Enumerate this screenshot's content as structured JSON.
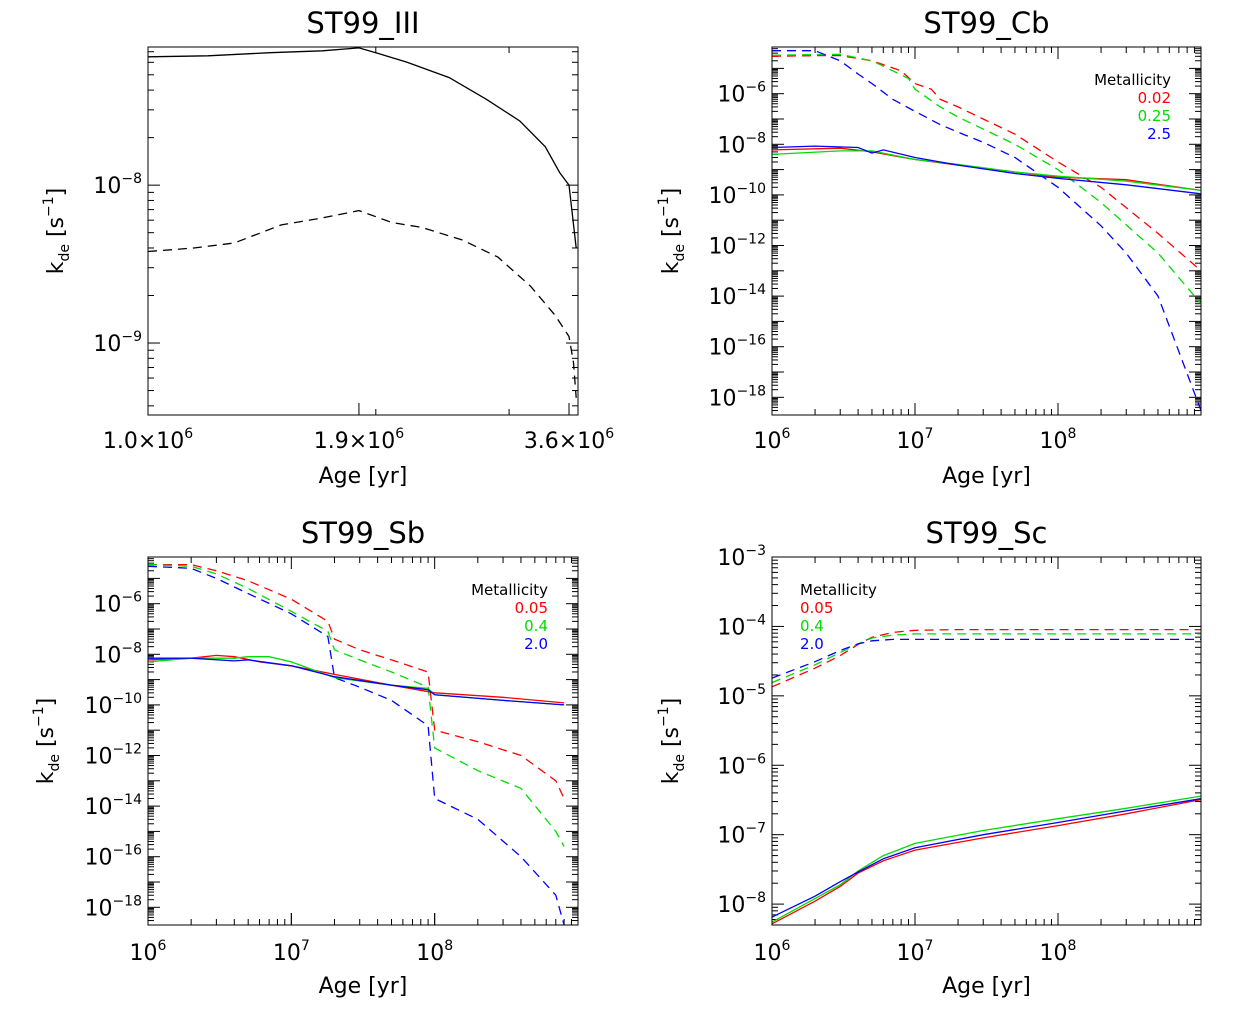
{
  "chart_data": [
    {
      "type": "line",
      "title": "ST99_III",
      "xlabel": "Age [yr]",
      "ylabel": "k_de [s^-1]",
      "xscale": "log",
      "yscale": "log",
      "xlim": [
        1000000,
        3700000
      ],
      "ylim": [
        3.5e-10,
        7.5e-08
      ],
      "xticks": [
        {
          "v": 1000000,
          "m": "1.0×10",
          "e": "6"
        },
        {
          "v": 1900000,
          "m": "1.9×10",
          "e": "6"
        },
        {
          "v": 3600000,
          "m": "3.6×10",
          "e": "6"
        }
      ],
      "yticks": [
        {
          "v": 1e-09,
          "m": "10",
          "e": "−9"
        },
        {
          "v": 1e-08,
          "m": "10",
          "e": "−8"
        }
      ],
      "legend_title": "",
      "series": [
        {
          "color": "#000000",
          "dash": false,
          "x": [
            1000000,
            1200000,
            1450000,
            1700000,
            1900000,
            2000000,
            2200000,
            2500000,
            2800000,
            3100000,
            3350000,
            3500000,
            3600000,
            3680000
          ],
          "y": [
            6.5e-08,
            6.6e-08,
            6.9e-08,
            7.1e-08,
            7.4e-08,
            6.9e-08,
            6e-08,
            4.8e-08,
            3.5e-08,
            2.55e-08,
            1.75e-08,
            1.2e-08,
            1e-08,
            4e-09
          ]
        },
        {
          "color": "#000000",
          "dash": true,
          "x": [
            1000000,
            1150000,
            1300000,
            1500000,
            1700000,
            1900000,
            2100000,
            2300000,
            2600000,
            2900000,
            3200000,
            3450000,
            3600000,
            3650000,
            3680000
          ],
          "y": [
            3.8e-09,
            4e-09,
            4.3e-09,
            5.6e-09,
            6.2e-09,
            6.9e-09,
            5.8e-09,
            5.4e-09,
            4.5e-09,
            3.5e-09,
            2.3e-09,
            1.5e-09,
            1.1e-09,
            7.5e-10,
            4.5e-10
          ]
        }
      ]
    },
    {
      "type": "line",
      "title": "ST99_Cb",
      "xlabel": "Age [yr]",
      "ylabel": "k_de [s^-1]",
      "xscale": "log",
      "yscale": "log",
      "xlim": [
        1000000,
        1000000000
      ],
      "ylim": [
        2e-19,
        7e-05
      ],
      "xticks": [
        {
          "v": 1000000,
          "m": "10",
          "e": "6"
        },
        {
          "v": 10000000,
          "m": "10",
          "e": "7"
        },
        {
          "v": 100000000,
          "m": "10",
          "e": "8"
        }
      ],
      "yticks": [
        {
          "v": 1e-06,
          "m": "10",
          "e": "−6"
        },
        {
          "v": 1e-08,
          "m": "10",
          "e": "−8"
        },
        {
          "v": 1e-10,
          "m": "10",
          "e": "−10"
        },
        {
          "v": 1e-12,
          "m": "10",
          "e": "−12"
        },
        {
          "v": 1e-14,
          "m": "10",
          "e": "−14"
        },
        {
          "v": 1e-16,
          "m": "10",
          "e": "−16"
        },
        {
          "v": 1e-18,
          "m": "10",
          "e": "−18"
        }
      ],
      "legend_title": "Metallicity",
      "series": [
        {
          "name": "0.02",
          "color": "#ff0000",
          "dash": true,
          "x": [
            1000000,
            2000000,
            3000000,
            5000000,
            8000000,
            10000000,
            13000000,
            15000000,
            20000000,
            30000000,
            50000000,
            100000000,
            200000000,
            500000000,
            1000000000
          ],
          "y": [
            3e-05,
            3.2e-05,
            3.2e-05,
            2e-05,
            8e-06,
            2.5e-06,
            1.5e-06,
            6e-07,
            3e-07,
            1e-07,
            2.5e-08,
            2e-09,
            2e-10,
            3e-12,
            1e-13
          ]
        },
        {
          "name": "0.25",
          "color": "#00dd00",
          "dash": true,
          "x": [
            1000000,
            2000000,
            3000000,
            5000000,
            7000000,
            9000000,
            10000000,
            15000000,
            20000000,
            30000000,
            50000000,
            100000000,
            200000000,
            500000000,
            1000000000
          ],
          "y": [
            3.3e-05,
            3.5e-05,
            3.6e-05,
            2e-05,
            8e-06,
            4e-06,
            1.5e-06,
            3e-07,
            1.2e-07,
            4e-08,
            1e-08,
            1e-09,
            5e-11,
            5e-13,
            5e-15
          ]
        },
        {
          "name": "2.5",
          "color": "#0000ff",
          "dash": true,
          "x": [
            1000000,
            2000000,
            3000000,
            4000000,
            5000000,
            7000000,
            10000000,
            15000000,
            20000000,
            30000000,
            50000000,
            100000000,
            200000000,
            300000000,
            500000000,
            1000000000
          ],
          "y": [
            5e-05,
            5e-05,
            2e-05,
            6e-06,
            2.5e-06,
            6e-07,
            2e-07,
            6e-08,
            3e-08,
            1.2e-08,
            3e-09,
            2e-10,
            6e-12,
            5e-13,
            1e-14,
            3e-19
          ]
        },
        {
          "name": "0.02",
          "color": "#ff0000",
          "dash": false,
          "x": [
            1000000,
            3000000,
            5000000,
            10000000,
            20000000,
            50000000,
            100000000,
            300000000,
            1000000000
          ],
          "y": [
            6e-09,
            7e-09,
            5e-09,
            2.5e-09,
            1.5e-09,
            8e-10,
            5e-10,
            4e-10,
            1.5e-10
          ]
        },
        {
          "name": "0.25",
          "color": "#00dd00",
          "dash": false,
          "x": [
            1000000,
            3000000,
            5000000,
            10000000,
            20000000,
            50000000,
            100000000,
            300000000,
            1000000000
          ],
          "y": [
            4e-09,
            5.5e-09,
            5.5e-09,
            2.5e-09,
            1.6e-09,
            8e-10,
            5.5e-10,
            3.5e-10,
            1.5e-10
          ]
        },
        {
          "name": "2.5",
          "color": "#0000ff",
          "dash": false,
          "x": [
            1000000,
            2000000,
            4000000,
            5000000,
            6000000,
            10000000,
            20000000,
            50000000,
            100000000,
            300000000,
            1000000000
          ],
          "y": [
            7.5e-09,
            8.5e-09,
            7.5e-09,
            4.5e-09,
            6e-09,
            3e-09,
            1.5e-09,
            7e-10,
            4.5e-10,
            2.5e-10,
            1.1e-10
          ]
        }
      ]
    },
    {
      "type": "line",
      "title": "ST99_Sb",
      "xlabel": "Age [yr]",
      "ylabel": "k_de [s^-1]",
      "xscale": "log",
      "yscale": "log",
      "xlim": [
        1000000,
        1000000000
      ],
      "ylim": [
        2e-19,
        7e-05
      ],
      "xticks": [
        {
          "v": 1000000,
          "m": "10",
          "e": "6"
        },
        {
          "v": 10000000,
          "m": "10",
          "e": "7"
        },
        {
          "v": 100000000,
          "m": "10",
          "e": "8"
        }
      ],
      "yticks": [
        {
          "v": 1e-06,
          "m": "10",
          "e": "−6"
        },
        {
          "v": 1e-08,
          "m": "10",
          "e": "−8"
        },
        {
          "v": 1e-10,
          "m": "10",
          "e": "−10"
        },
        {
          "v": 1e-12,
          "m": "10",
          "e": "−12"
        },
        {
          "v": 1e-14,
          "m": "10",
          "e": "−14"
        },
        {
          "v": 1e-16,
          "m": "10",
          "e": "−16"
        },
        {
          "v": 1e-18,
          "m": "10",
          "e": "−18"
        }
      ],
      "legend_title": "Metallicity",
      "series": [
        {
          "name": "0.05",
          "color": "#ff0000",
          "dash": true,
          "x": [
            1000000,
            2000000,
            3000000,
            5000000,
            10000000,
            18000000,
            20000000,
            30000000,
            50000000,
            90000000,
            100000000,
            200000000,
            400000000,
            700000000,
            800000000
          ],
          "y": [
            3.5e-05,
            3.5e-05,
            2e-05,
            8e-06,
            1.5e-06,
            2e-07,
            4e-08,
            1.5e-08,
            6e-09,
            2e-09,
            1e-11,
            3.5e-12,
            1e-12,
            1e-13,
            2e-14
          ]
        },
        {
          "name": "0.4",
          "color": "#00dd00",
          "dash": true,
          "x": [
            1000000,
            2000000,
            3000000,
            5000000,
            10000000,
            18000000,
            20000000,
            30000000,
            50000000,
            90000000,
            100000000,
            200000000,
            400000000,
            700000000,
            800000000
          ],
          "y": [
            3.5e-05,
            3e-05,
            1.5e-05,
            4e-06,
            5e-07,
            8e-08,
            1.5e-08,
            6e-09,
            2e-09,
            5e-10,
            2e-12,
            2.5e-13,
            5e-14,
            1e-15,
            2.5e-16
          ]
        },
        {
          "name": "2.0",
          "color": "#0000ff",
          "dash": true,
          "x": [
            1000000,
            2000000,
            3000000,
            5000000,
            10000000,
            18000000,
            20000000,
            30000000,
            50000000,
            90000000,
            100000000,
            200000000,
            400000000,
            700000000,
            800000000
          ],
          "y": [
            3e-05,
            2.5e-05,
            1e-05,
            2.5e-06,
            4e-07,
            5e-08,
            1.2e-09,
            5e-10,
            1.5e-10,
            1.5e-11,
            2e-14,
            3e-15,
            1e-16,
            3e-18,
            2e-19
          ]
        },
        {
          "name": "0.05",
          "color": "#ff0000",
          "dash": false,
          "x": [
            1000000,
            2000000,
            3000000,
            4000000,
            6000000,
            10000000,
            20000000,
            50000000,
            100000000,
            300000000,
            800000000
          ],
          "y": [
            6e-09,
            7e-09,
            9e-09,
            8e-09,
            5e-09,
            3.5e-09,
            1.6e-09,
            6e-10,
            3e-10,
            2e-10,
            1.2e-10
          ]
        },
        {
          "name": "0.4",
          "color": "#00dd00",
          "dash": false,
          "x": [
            1000000,
            2000000,
            4000000,
            5000000,
            7000000,
            10000000,
            20000000,
            50000000,
            90000000,
            100000000,
            300000000,
            800000000
          ],
          "y": [
            5e-09,
            7e-09,
            7e-09,
            8e-09,
            8e-09,
            5e-09,
            1.2e-09,
            6e-10,
            4.5e-10,
            2.5e-10,
            1.5e-10,
            1e-10
          ]
        },
        {
          "name": "2.0",
          "color": "#0000ff",
          "dash": false,
          "x": [
            1000000,
            2000000,
            4000000,
            5000000,
            10000000,
            20000000,
            50000000,
            90000000,
            100000000,
            300000000,
            800000000
          ],
          "y": [
            7e-09,
            7e-09,
            5.5e-09,
            6e-09,
            3.5e-09,
            1.3e-09,
            6e-10,
            4e-10,
            2.5e-10,
            1.5e-10,
            1e-10
          ]
        }
      ]
    },
    {
      "type": "line",
      "title": "ST99_Sc",
      "xlabel": "Age [yr]",
      "ylabel": "k_de [s^-1]",
      "xscale": "log",
      "yscale": "log",
      "xlim": [
        1000000,
        1000000000
      ],
      "ylim": [
        5e-09,
        0.001
      ],
      "xticks": [
        {
          "v": 1000000,
          "m": "10",
          "e": "6"
        },
        {
          "v": 10000000,
          "m": "10",
          "e": "7"
        },
        {
          "v": 100000000,
          "m": "10",
          "e": "8"
        }
      ],
      "yticks": [
        {
          "v": 0.001,
          "m": "10",
          "e": "−3"
        },
        {
          "v": 0.0001,
          "m": "10",
          "e": "−4"
        },
        {
          "v": 1e-05,
          "m": "10",
          "e": "−5"
        },
        {
          "v": 1e-06,
          "m": "10",
          "e": "−6"
        },
        {
          "v": 1e-07,
          "m": "10",
          "e": "−7"
        },
        {
          "v": 1e-08,
          "m": "10",
          "e": "−8"
        }
      ],
      "legend_title": "Metallicity",
      "series": [
        {
          "name": "0.05",
          "color": "#ff0000",
          "dash": true,
          "x": [
            1000000,
            2000000,
            3000000,
            4000000,
            5000000,
            7000000,
            10000000,
            20000000,
            100000000,
            1000000000
          ],
          "y": [
            1.35e-05,
            2.5e-05,
            3.8e-05,
            5.5e-05,
            7e-05,
            8.2e-05,
            8.8e-05,
            9e-05,
            9e-05,
            9e-05
          ]
        },
        {
          "name": "0.4",
          "color": "#00dd00",
          "dash": true,
          "x": [
            1000000,
            2000000,
            3000000,
            4000000,
            5000000,
            7000000,
            10000000,
            20000000,
            100000000,
            1000000000
          ],
          "y": [
            1.55e-05,
            2.8e-05,
            4.2e-05,
            5.6e-05,
            6.8e-05,
            7.5e-05,
            7.8e-05,
            7.8e-05,
            7.8e-05,
            7.8e-05
          ]
        },
        {
          "name": "2.0",
          "color": "#0000ff",
          "dash": true,
          "x": [
            1000000,
            2000000,
            3000000,
            4000000,
            5000000,
            7000000,
            10000000,
            20000000,
            100000000,
            1000000000
          ],
          "y": [
            1.8e-05,
            3.1e-05,
            4.5e-05,
            5.6e-05,
            6.2e-05,
            6.5e-05,
            6.5e-05,
            6.5e-05,
            6.5e-05,
            6.5e-05
          ]
        },
        {
          "name": "0.05",
          "color": "#ff0000",
          "dash": false,
          "x": [
            1000000,
            2000000,
            3000000,
            4000000,
            6000000,
            10000000,
            30000000,
            100000000,
            300000000,
            1000000000
          ],
          "y": [
            5.2e-09,
            1.1e-08,
            1.8e-08,
            2.8e-08,
            4.2e-08,
            6e-08,
            9e-08,
            1.35e-07,
            2e-07,
            3.2e-07
          ]
        },
        {
          "name": "0.4",
          "color": "#00dd00",
          "dash": false,
          "x": [
            1000000,
            2000000,
            3000000,
            4000000,
            6000000,
            10000000,
            30000000,
            100000000,
            300000000,
            1000000000
          ],
          "y": [
            5.5e-09,
            1.2e-08,
            1.9e-08,
            3e-08,
            5e-08,
            7.5e-08,
            1.15e-07,
            1.7e-07,
            2.4e-07,
            3.6e-07
          ]
        },
        {
          "name": "2.0",
          "color": "#0000ff",
          "dash": false,
          "x": [
            1000000,
            2000000,
            3000000,
            4000000,
            6000000,
            10000000,
            30000000,
            100000000,
            300000000,
            1000000000
          ],
          "y": [
            6.5e-09,
            1.3e-08,
            2.1e-08,
            2.9e-08,
            4.5e-08,
            6.5e-08,
            1e-07,
            1.5e-07,
            2.2e-07,
            3.3e-07
          ]
        }
      ]
    }
  ]
}
